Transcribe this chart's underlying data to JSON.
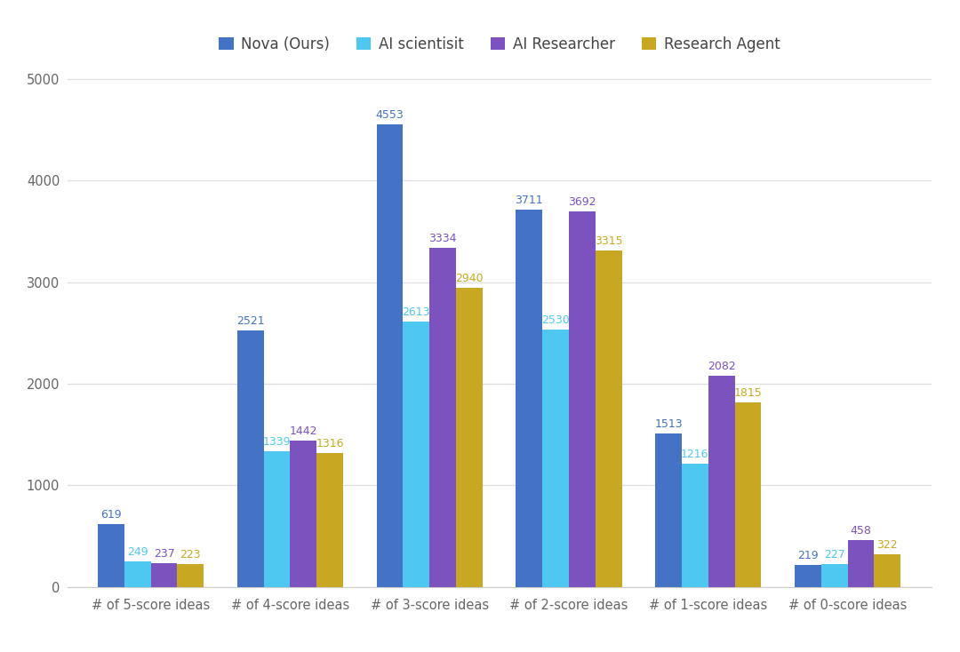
{
  "categories": [
    "# of 5-score ideas",
    "# of 4-score ideas",
    "# of 3-score ideas",
    "# of 2-score ideas",
    "# of 1-score ideas",
    "# of 0-score ideas"
  ],
  "series": [
    {
      "label": "Nova (Ours)",
      "color": "#4472C4",
      "values": [
        619,
        2521,
        4553,
        3711,
        1513,
        219
      ]
    },
    {
      "label": "AI scientisit",
      "color": "#4EC8F0",
      "values": [
        249,
        1339,
        2613,
        2530,
        1216,
        227
      ]
    },
    {
      "label": "AI Researcher",
      "color": "#7B52BE",
      "values": [
        237,
        1442,
        3334,
        3692,
        2082,
        458
      ]
    },
    {
      "label": "Research Agent",
      "color": "#C8A822",
      "values": [
        223,
        1316,
        2940,
        3315,
        1815,
        322
      ]
    }
  ],
  "ylim": [
    0,
    5200
  ],
  "yticks": [
    0,
    1000,
    2000,
    3000,
    4000,
    5000
  ],
  "figsize": [
    10.8,
    7.34
  ],
  "dpi": 100,
  "bg_color": "#FFFFFF",
  "grid_color": "#DEDEDE",
  "tick_fontsize": 10.5,
  "legend_fontsize": 12,
  "bar_value_fontsize": 9,
  "bar_width": 0.19
}
